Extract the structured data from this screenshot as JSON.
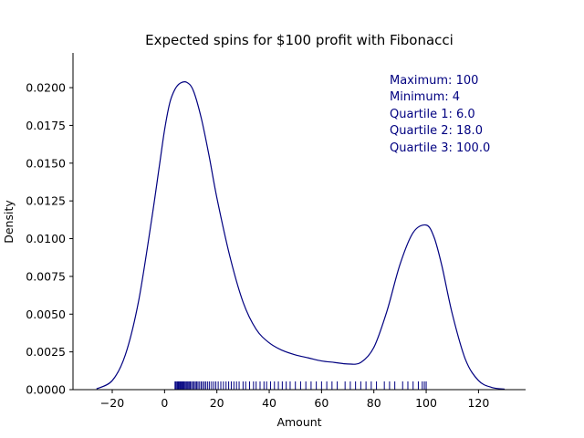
{
  "chart_data": {
    "type": "line",
    "subtype": "kde-with-rug",
    "title": "Expected spins for $100 profit with Fibonacci",
    "xlabel": "Amount",
    "ylabel": "Density",
    "xlim": [
      -35,
      138
    ],
    "ylim": [
      0,
      0.0223
    ],
    "x_ticks": [
      -20,
      0,
      20,
      40,
      60,
      80,
      100,
      120
    ],
    "x_tick_labels": [
      "−20",
      "0",
      "20",
      "40",
      "60",
      "80",
      "100",
      "120"
    ],
    "y_ticks": [
      0,
      0.0025,
      0.005,
      0.0075,
      0.01,
      0.0125,
      0.015,
      0.0175,
      0.02
    ],
    "y_tick_labels": [
      "0.0000",
      "0.0025",
      "0.0050",
      "0.0075",
      "0.0100",
      "0.0125",
      "0.0150",
      "0.0175",
      "0.0200"
    ],
    "grid": false,
    "line_color": "#000080",
    "series": [
      {
        "x": [
          -26,
          -20,
          -15,
          -10,
          -5,
          -2,
          0,
          2,
          4,
          6,
          8.5,
          11,
          14,
          17,
          20,
          25,
          30,
          35,
          40,
          45,
          50,
          55,
          60,
          65,
          70,
          75,
          80,
          85,
          90,
          95,
          100,
          103,
          106,
          110,
          115,
          120,
          125,
          130
        ],
        "y": [
          5e-05,
          0.0006,
          0.0023,
          0.0058,
          0.0112,
          0.0148,
          0.0172,
          0.019,
          0.0199,
          0.0203,
          0.02035,
          0.0198,
          0.018,
          0.0155,
          0.0127,
          0.0088,
          0.0058,
          0.004,
          0.0031,
          0.0026,
          0.0023,
          0.0021,
          0.0019,
          0.0018,
          0.0017,
          0.0018,
          0.0028,
          0.0052,
          0.0083,
          0.0104,
          0.0109,
          0.0101,
          0.0082,
          0.005,
          0.002,
          0.0006,
          0.00015,
          3e-05
        ]
      }
    ],
    "rug": [
      4,
      4.3,
      4.7,
      5,
      5.3,
      5.6,
      6,
      6.3,
      6.7,
      7,
      7.4,
      7.8,
      8.2,
      8.6,
      9,
      9.4,
      9.8,
      10.3,
      10.8,
      11.3,
      11.8,
      12.3,
      12.8,
      13.4,
      14,
      14.6,
      15.2,
      15.8,
      16.5,
      17.2,
      18,
      18.8,
      19.6,
      20.5,
      21.5,
      22.5,
      23.5,
      24.5,
      25.5,
      26.5,
      27.5,
      28.5,
      30,
      31,
      32.5,
      34,
      35,
      36.5,
      38,
      39,
      40.5,
      42,
      43.5,
      45,
      46.5,
      48,
      50,
      52,
      54,
      56,
      58,
      60,
      62,
      64,
      66,
      69,
      71,
      73,
      75,
      77,
      79,
      81,
      84,
      86,
      88,
      91,
      93,
      95,
      97,
      98.5,
      99.3,
      100
    ],
    "annotations": [
      "Maximum: 100",
      "Minimum: 4",
      "Quartile 1: 6.0",
      "Quartile 2: 18.0",
      "Quartile 3: 100.0"
    ]
  }
}
